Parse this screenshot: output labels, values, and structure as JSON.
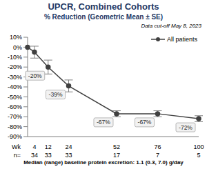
{
  "chart_data": {
    "type": "line",
    "title": "UPCR, Combined Cohorts",
    "subtitle": "% Reduction (Geometric Mean ± SE)",
    "annotation": "Data cut-off May 8, 2023",
    "footer": "Median (range) baseline protein excretion: 1.1 (0.3, 7.0) g/day",
    "x_label": "Wk",
    "x": [
      0,
      4,
      12,
      24,
      52,
      76,
      100
    ],
    "series": [
      {
        "name": "All patients",
        "color": "#404040",
        "marker": "circle",
        "values": [
          0,
          -5,
          -20,
          -39,
          -67,
          -67,
          -72
        ],
        "value_labels": [
          null,
          null,
          "-20%",
          "-39%",
          "-67%",
          "-67%",
          "-72%"
        ],
        "error": [
          null,
          6,
          7,
          6,
          3,
          3,
          3
        ]
      }
    ],
    "xlim": [
      0,
      100
    ],
    "xticks": [
      4,
      12,
      24,
      52,
      76,
      100
    ],
    "ylim": [
      -90,
      10
    ],
    "yticks": [
      {
        "value": 10,
        "label": "10%"
      },
      {
        "value": 0,
        "label": "0%"
      },
      {
        "value": -10,
        "label": "-10%"
      },
      {
        "value": -20,
        "label": "-20%"
      },
      {
        "value": -30,
        "label": "-30%"
      },
      {
        "value": -40,
        "label": "-40%"
      },
      {
        "value": -50,
        "label": "-50%"
      },
      {
        "value": -60,
        "label": "-60%"
      },
      {
        "value": -70,
        "label": "-70%"
      },
      {
        "value": -80,
        "label": "-80%"
      },
      {
        "value": -90,
        "label": "-90%"
      }
    ],
    "n_label": "n=",
    "n": [
      34,
      33,
      33,
      17,
      7,
      5
    ],
    "legend": "upper right",
    "data_labels": true,
    "grid": false
  }
}
